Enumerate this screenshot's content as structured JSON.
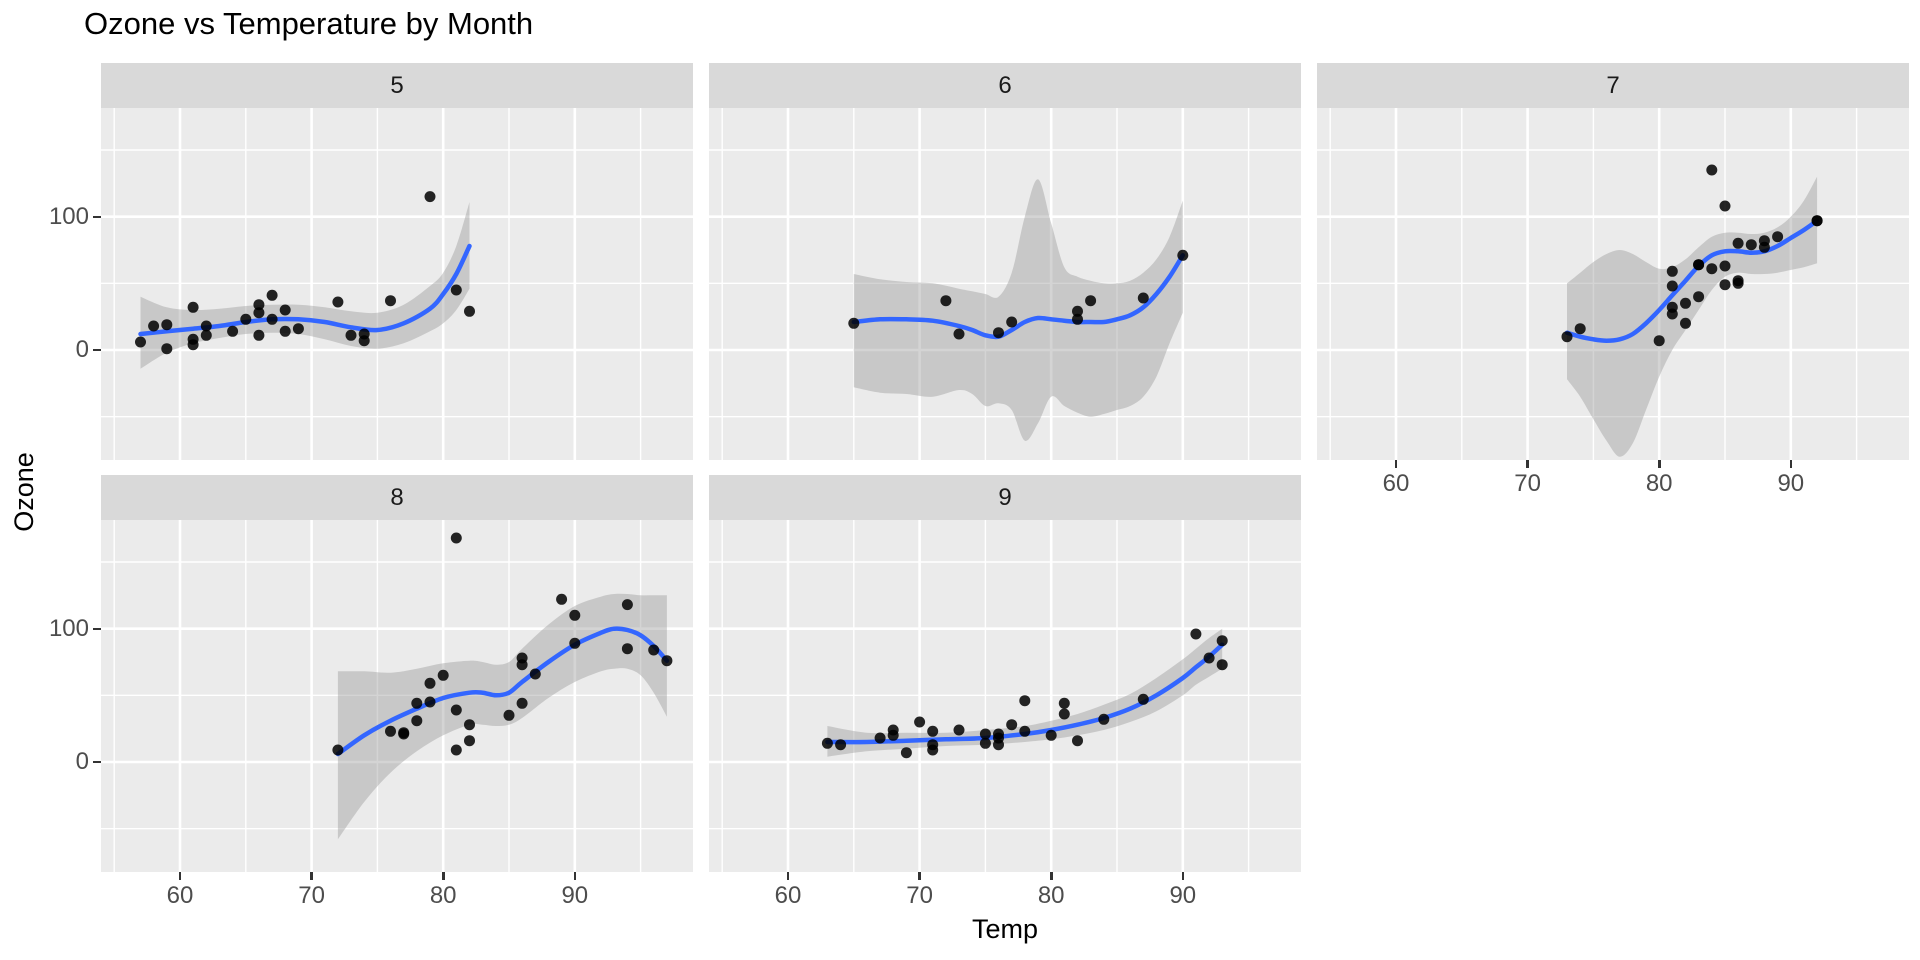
{
  "title": "Ozone vs Temperature by Month",
  "colors": {
    "panel_background": "#EBEBEB",
    "strip_background": "#D9D9D9",
    "gridline": "#FFFFFF",
    "smooth_line": "#3366FF",
    "ribbon": "#999999",
    "point": "#000000",
    "axis_text": "#4D4D4D",
    "strip_text": "#1A1A1A",
    "title_text": "#000000"
  },
  "chart_data": {
    "type": "scatter",
    "title": "Ozone vs Temperature by Month",
    "xlabel": "Temp",
    "ylabel": "Ozone",
    "facet_variable": "Month",
    "legend": "none",
    "grid": "on",
    "x_domain": [
      54,
      99
    ],
    "y_domain": [
      -82,
      181.5
    ],
    "x_ticks": [
      60,
      70,
      80,
      90
    ],
    "x_tick_labels": [
      "60",
      "70",
      "80",
      "90"
    ],
    "x_minor_ticks": [
      55,
      65,
      75,
      85,
      95
    ],
    "y_ticks": [
      0,
      100
    ],
    "y_tick_labels": [
      "0",
      "100"
    ],
    "y_minor_ticks": [
      -50,
      50,
      150
    ],
    "smoother": "loess with 95% confidence ribbon",
    "facets": [
      {
        "label": "5",
        "points": [
          [
            67,
            41
          ],
          [
            72,
            36
          ],
          [
            74,
            12
          ],
          [
            62,
            18
          ],
          [
            66,
            28
          ],
          [
            65,
            23
          ],
          [
            59,
            19
          ],
          [
            61,
            8
          ],
          [
            74,
            7
          ],
          [
            69,
            16
          ],
          [
            66,
            11
          ],
          [
            68,
            14
          ],
          [
            58,
            18
          ],
          [
            64,
            14
          ],
          [
            66,
            34
          ],
          [
            57,
            6
          ],
          [
            68,
            30
          ],
          [
            62,
            11
          ],
          [
            59,
            1
          ],
          [
            73,
            11
          ],
          [
            61,
            4
          ],
          [
            61,
            32
          ],
          [
            67,
            23
          ],
          [
            81,
            45
          ],
          [
            79,
            115
          ],
          [
            76,
            37
          ],
          [
            82,
            29
          ]
        ],
        "line": [
          [
            57,
            12
          ],
          [
            59,
            14
          ],
          [
            61,
            16
          ],
          [
            63,
            18
          ],
          [
            65,
            21
          ],
          [
            67,
            23
          ],
          [
            69,
            23
          ],
          [
            71,
            21
          ],
          [
            73,
            17
          ],
          [
            75,
            15
          ],
          [
            77,
            20
          ],
          [
            79,
            31
          ],
          [
            80,
            42
          ],
          [
            81,
            57
          ],
          [
            82,
            78
          ]
        ],
        "ribbon": {
          "x": [
            57,
            59,
            61,
            63,
            65,
            67,
            69,
            71,
            73,
            75,
            77,
            79,
            80,
            81,
            82
          ],
          "lo": [
            -14,
            -2,
            5,
            9,
            12,
            13,
            12,
            8,
            3,
            1,
            5,
            14,
            20,
            30,
            46
          ],
          "hi": [
            40,
            32,
            30,
            31,
            33,
            34,
            34,
            32,
            29,
            28,
            34,
            48,
            58,
            78,
            111
          ]
        }
      },
      {
        "label": "6",
        "points": [
          [
            82,
            29
          ],
          [
            90,
            71
          ],
          [
            87,
            39
          ],
          [
            82,
            23
          ],
          [
            77,
            21
          ],
          [
            72,
            37
          ],
          [
            65,
            20
          ],
          [
            73,
            12
          ],
          [
            76,
            13
          ],
          [
            83,
            37
          ]
        ],
        "line": [
          [
            65,
            21
          ],
          [
            67,
            23
          ],
          [
            69,
            23
          ],
          [
            71,
            22
          ],
          [
            73,
            18
          ],
          [
            74,
            15
          ],
          [
            75,
            11
          ],
          [
            76,
            10
          ],
          [
            77,
            15
          ],
          [
            78,
            21
          ],
          [
            79,
            24
          ],
          [
            80,
            23
          ],
          [
            81,
            22
          ],
          [
            82,
            21
          ],
          [
            83,
            21
          ],
          [
            84,
            21
          ],
          [
            85,
            23
          ],
          [
            86,
            26
          ],
          [
            87,
            32
          ],
          [
            88,
            42
          ],
          [
            89,
            55
          ],
          [
            90,
            71
          ]
        ],
        "ribbon": {
          "x": [
            65,
            67,
            69,
            71,
            73,
            74,
            75,
            76,
            77,
            78,
            79,
            80,
            81,
            82,
            83,
            84,
            85,
            86,
            87,
            88,
            89,
            90
          ],
          "lo": [
            -28,
            -32,
            -33,
            -35,
            -30,
            -33,
            -42,
            -40,
            -45,
            -68,
            -55,
            -35,
            -42,
            -47,
            -50,
            -48,
            -45,
            -42,
            -35,
            -20,
            5,
            28
          ],
          "hi": [
            57,
            53,
            51,
            50,
            46,
            44,
            42,
            40,
            58,
            100,
            128,
            95,
            62,
            55,
            52,
            50,
            50,
            52,
            58,
            68,
            85,
            112
          ]
        }
      },
      {
        "label": "7",
        "points": [
          [
            84,
            135
          ],
          [
            85,
            49
          ],
          [
            81,
            32
          ],
          [
            83,
            64
          ],
          [
            83,
            40
          ],
          [
            88,
            77
          ],
          [
            92,
            97
          ],
          [
            92,
            97
          ],
          [
            89,
            85
          ],
          [
            73,
            10
          ],
          [
            81,
            27
          ],
          [
            80,
            7
          ],
          [
            81,
            48
          ],
          [
            82,
            35
          ],
          [
            84,
            61
          ],
          [
            87,
            79
          ],
          [
            85,
            63
          ],
          [
            74,
            16
          ],
          [
            86,
            80
          ],
          [
            85,
            108
          ],
          [
            82,
            20
          ],
          [
            86,
            52
          ],
          [
            88,
            82
          ],
          [
            86,
            50
          ],
          [
            83,
            64
          ],
          [
            81,
            59
          ]
        ],
        "line": [
          [
            73,
            13
          ],
          [
            74,
            10
          ],
          [
            75,
            8
          ],
          [
            76,
            7
          ],
          [
            77,
            8
          ],
          [
            78,
            12
          ],
          [
            79,
            20
          ],
          [
            80,
            30
          ],
          [
            81,
            41
          ],
          [
            82,
            52
          ],
          [
            83,
            63
          ],
          [
            84,
            71
          ],
          [
            85,
            74
          ],
          [
            86,
            74
          ],
          [
            87,
            73
          ],
          [
            88,
            74
          ],
          [
            89,
            78
          ],
          [
            90,
            84
          ],
          [
            91,
            90
          ],
          [
            92,
            97
          ]
        ],
        "ribbon": {
          "x": [
            73,
            74,
            75,
            76,
            77,
            78,
            79,
            80,
            81,
            82,
            83,
            84,
            85,
            86,
            87,
            88,
            89,
            90,
            91,
            92
          ],
          "lo": [
            -22,
            -35,
            -52,
            -68,
            -80,
            -70,
            -45,
            -20,
            0,
            15,
            30,
            45,
            55,
            58,
            57,
            57,
            58,
            60,
            62,
            65
          ],
          "hi": [
            50,
            58,
            66,
            72,
            75,
            72,
            66,
            61,
            62,
            68,
            77,
            85,
            88,
            88,
            87,
            88,
            92,
            100,
            112,
            130
          ]
        }
      },
      {
        "label": "8",
        "points": [
          [
            81,
            39
          ],
          [
            81,
            9
          ],
          [
            82,
            16
          ],
          [
            86,
            78
          ],
          [
            85,
            35
          ],
          [
            87,
            66
          ],
          [
            89,
            122
          ],
          [
            90,
            89
          ],
          [
            90,
            110
          ],
          [
            86,
            44
          ],
          [
            82,
            28
          ],
          [
            80,
            65
          ],
          [
            77,
            22
          ],
          [
            79,
            59
          ],
          [
            76,
            23
          ],
          [
            78,
            31
          ],
          [
            78,
            44
          ],
          [
            77,
            21
          ],
          [
            72,
            9
          ],
          [
            79,
            45
          ],
          [
            81,
            168
          ],
          [
            86,
            73
          ],
          [
            97,
            76
          ],
          [
            94,
            118
          ],
          [
            96,
            84
          ],
          [
            94,
            85
          ]
        ],
        "line": [
          [
            72,
            6
          ],
          [
            74,
            20
          ],
          [
            76,
            31
          ],
          [
            78,
            40
          ],
          [
            80,
            48
          ],
          [
            82,
            52
          ],
          [
            83,
            52
          ],
          [
            84,
            50
          ],
          [
            85,
            52
          ],
          [
            86,
            60
          ],
          [
            88,
            75
          ],
          [
            90,
            88
          ],
          [
            92,
            97
          ],
          [
            93,
            100
          ],
          [
            94,
            99
          ],
          [
            95,
            95
          ],
          [
            96,
            87
          ],
          [
            97,
            76
          ]
        ],
        "ribbon": {
          "x": [
            72,
            74,
            76,
            78,
            80,
            82,
            83,
            84,
            85,
            86,
            88,
            90,
            92,
            93,
            94,
            95,
            96,
            97
          ],
          "lo": [
            -58,
            -30,
            -8,
            8,
            20,
            28,
            28,
            27,
            28,
            33,
            48,
            60,
            68,
            70,
            70,
            65,
            52,
            34
          ],
          "hi": [
            68,
            68,
            67,
            70,
            74,
            76,
            75,
            73,
            75,
            85,
            103,
            117,
            124,
            126,
            126,
            125,
            125,
            125
          ]
        }
      },
      {
        "label": "9",
        "points": [
          [
            91,
            96
          ],
          [
            92,
            78
          ],
          [
            93,
            73
          ],
          [
            93,
            91
          ],
          [
            87,
            47
          ],
          [
            84,
            32
          ],
          [
            80,
            20
          ],
          [
            78,
            23
          ],
          [
            75,
            21
          ],
          [
            73,
            24
          ],
          [
            81,
            44
          ],
          [
            76,
            21
          ],
          [
            77,
            28
          ],
          [
            71,
            9
          ],
          [
            71,
            13
          ],
          [
            78,
            46
          ],
          [
            67,
            18
          ],
          [
            76,
            13
          ],
          [
            68,
            24
          ],
          [
            82,
            16
          ],
          [
            64,
            13
          ],
          [
            71,
            23
          ],
          [
            81,
            36
          ],
          [
            69,
            7
          ],
          [
            63,
            14
          ],
          [
            70,
            30
          ],
          [
            75,
            14
          ],
          [
            76,
            18
          ],
          [
            68,
            20
          ]
        ],
        "line": [
          [
            63,
            15
          ],
          [
            66,
            15
          ],
          [
            69,
            16
          ],
          [
            72,
            17
          ],
          [
            75,
            18
          ],
          [
            78,
            21
          ],
          [
            80,
            24
          ],
          [
            82,
            28
          ],
          [
            84,
            33
          ],
          [
            86,
            40
          ],
          [
            88,
            50
          ],
          [
            90,
            63
          ],
          [
            91,
            71
          ],
          [
            92,
            79
          ],
          [
            93,
            88
          ]
        ],
        "ribbon": {
          "x": [
            63,
            66,
            69,
            72,
            75,
            78,
            80,
            82,
            84,
            86,
            88,
            90,
            91,
            92,
            93
          ],
          "lo": [
            4,
            8,
            10,
            12,
            13,
            15,
            17,
            20,
            24,
            30,
            38,
            50,
            58,
            64,
            70
          ],
          "hi": [
            27,
            22,
            22,
            22,
            24,
            27,
            31,
            36,
            43,
            51,
            63,
            77,
            85,
            93,
            100
          ]
        }
      }
    ]
  }
}
